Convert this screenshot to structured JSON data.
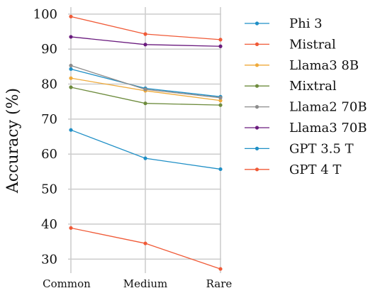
{
  "chart_data": {
    "type": "line",
    "title": "",
    "xlabel": "",
    "ylabel": "Accuracy (%)",
    "categories": [
      "Common",
      "Medium",
      "Rare"
    ],
    "ylim": [
      26,
      102
    ],
    "yticks": [
      30,
      40,
      50,
      60,
      70,
      80,
      90,
      100
    ],
    "grid": true,
    "legend": "right",
    "series": [
      {
        "name": "Phi 3",
        "color": "#1f8fc6",
        "values": [
          84.3,
          78.8,
          76.4
        ]
      },
      {
        "name": "Mistral",
        "color": "#f05a37",
        "values": [
          99.3,
          94.3,
          92.7
        ]
      },
      {
        "name": "Llama3 8B",
        "color": "#efaa3a",
        "values": [
          81.7,
          78.1,
          75.3
        ]
      },
      {
        "name": "Mixtral",
        "color": "#6e8c3e",
        "values": [
          79.1,
          74.5,
          74.0
        ]
      },
      {
        "name": "Llama2 70B",
        "color": "#8c8c8c",
        "values": [
          85.3,
          78.5,
          76.1
        ]
      },
      {
        "name": "Llama3 70B",
        "color": "#6a1b7e",
        "values": [
          93.5,
          91.3,
          90.8
        ]
      },
      {
        "name": "GPT 3.5 T",
        "color": "#1f8fc6",
        "values": [
          66.9,
          58.8,
          55.7
        ]
      },
      {
        "name": "GPT 4 T",
        "color": "#f05a37",
        "values": [
          38.9,
          34.5,
          27.2
        ]
      }
    ]
  }
}
